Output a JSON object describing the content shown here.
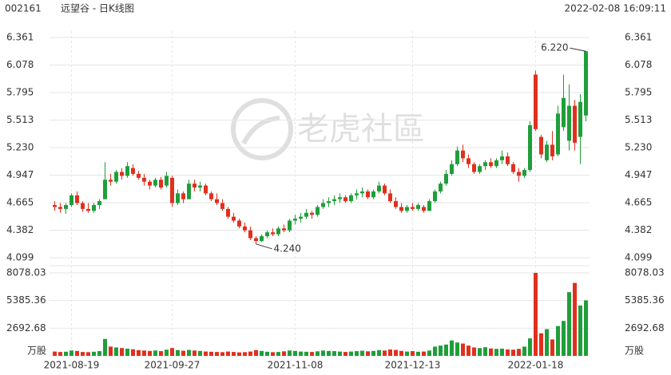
{
  "header": {
    "code": "002161",
    "name": "远望谷 - 日K线图",
    "time": "2022-02-08 16:09:11"
  },
  "watermark": "老虎社區",
  "chart_data": {
    "type": "candlestick",
    "up_color": "#1f9e3a",
    "down_color": "#e0301e",
    "categories": [
      null,
      null,
      null,
      "2021-08-19",
      null,
      null,
      null,
      null,
      null,
      null,
      null,
      null,
      null,
      null,
      null,
      null,
      null,
      null,
      null,
      null,
      null,
      "2021-09-27",
      null,
      null,
      null,
      null,
      null,
      null,
      null,
      null,
      null,
      null,
      null,
      null,
      null,
      null,
      null,
      null,
      null,
      null,
      null,
      null,
      null,
      "2021-11-08",
      null,
      null,
      null,
      null,
      null,
      null,
      null,
      null,
      null,
      null,
      null,
      null,
      null,
      null,
      null,
      null,
      null,
      null,
      null,
      null,
      "2021-12-13",
      null,
      null,
      null,
      null,
      null,
      null,
      null,
      null,
      null,
      null,
      null,
      null,
      null,
      null,
      null,
      null,
      null,
      null,
      null,
      null,
      null,
      "2022-01-18",
      null,
      null,
      null,
      null,
      null,
      null,
      null,
      null,
      null
    ],
    "open": [
      4.64,
      4.62,
      4.6,
      4.64,
      4.74,
      4.66,
      4.6,
      4.58,
      4.64,
      4.7,
      4.9,
      4.88,
      4.98,
      4.94,
      5.02,
      4.96,
      4.92,
      4.88,
      4.84,
      4.9,
      4.84,
      4.92,
      4.66,
      4.76,
      4.7,
      4.86,
      4.82,
      4.84,
      4.76,
      4.7,
      4.66,
      4.6,
      4.52,
      4.48,
      4.42,
      4.38,
      4.3,
      4.27,
      4.32,
      4.36,
      4.34,
      4.4,
      4.38,
      4.48,
      4.5,
      4.52,
      4.56,
      4.54,
      4.62,
      4.66,
      4.68,
      4.7,
      4.72,
      4.68,
      4.74,
      4.76,
      4.78,
      4.72,
      4.78,
      4.84,
      4.76,
      4.68,
      4.62,
      4.58,
      4.62,
      4.6,
      4.62,
      4.58,
      4.68,
      4.78,
      4.86,
      4.96,
      5.06,
      5.2,
      5.12,
      5.06,
      4.98,
      5.04,
      5.08,
      5.04,
      5.1,
      5.14,
      5.06,
      4.98,
      4.94,
      5.0,
      5.98,
      5.34,
      5.1,
      5.26,
      5.16,
      5.44,
      5.3,
      5.66,
      5.34,
      5.56
    ],
    "high": [
      4.68,
      4.66,
      4.66,
      4.76,
      4.78,
      4.68,
      4.66,
      4.66,
      4.7,
      5.08,
      4.96,
      5.0,
      5.02,
      5.08,
      5.06,
      4.99,
      4.96,
      4.9,
      4.92,
      4.93,
      4.98,
      4.94,
      4.8,
      4.78,
      4.9,
      4.9,
      4.88,
      4.86,
      4.78,
      4.76,
      4.7,
      4.62,
      4.56,
      4.5,
      4.46,
      4.42,
      4.32,
      4.34,
      4.38,
      4.4,
      4.42,
      4.44,
      4.5,
      4.54,
      4.56,
      4.6,
      4.58,
      4.64,
      4.7,
      4.72,
      4.74,
      4.76,
      4.74,
      4.76,
      4.8,
      4.82,
      4.8,
      4.8,
      4.88,
      4.86,
      4.8,
      4.72,
      4.66,
      4.64,
      4.66,
      4.66,
      4.64,
      4.7,
      4.8,
      4.88,
      5.0,
      5.1,
      5.24,
      5.26,
      5.16,
      5.08,
      5.06,
      5.1,
      5.12,
      5.12,
      5.2,
      5.18,
      5.08,
      5.02,
      5.02,
      5.5,
      6.02,
      5.36,
      5.3,
      5.4,
      5.66,
      5.98,
      5.88,
      5.72,
      5.78,
      6.22
    ],
    "low": [
      4.58,
      4.56,
      4.55,
      4.62,
      4.64,
      4.57,
      4.56,
      4.56,
      4.6,
      4.7,
      4.84,
      4.86,
      4.9,
      4.92,
      4.94,
      4.9,
      4.84,
      4.8,
      4.82,
      4.8,
      4.82,
      4.62,
      4.64,
      4.66,
      4.7,
      4.78,
      4.78,
      4.74,
      4.68,
      4.64,
      4.58,
      4.5,
      4.46,
      4.4,
      4.36,
      4.28,
      4.24,
      4.26,
      4.3,
      4.32,
      4.32,
      4.36,
      4.36,
      4.44,
      4.46,
      4.5,
      4.5,
      4.52,
      4.6,
      4.62,
      4.64,
      4.66,
      4.66,
      4.66,
      4.7,
      4.72,
      4.7,
      4.7,
      4.76,
      4.74,
      4.66,
      4.6,
      4.56,
      4.56,
      4.58,
      4.58,
      4.56,
      4.58,
      4.66,
      4.76,
      4.84,
      4.94,
      5.04,
      5.08,
      5.02,
      4.96,
      4.96,
      5.0,
      5.02,
      5.02,
      5.06,
      5.04,
      4.96,
      4.88,
      4.92,
      4.98,
      5.4,
      5.12,
      5.08,
      5.1,
      5.14,
      5.4,
      5.2,
      5.2,
      5.06,
      5.5
    ],
    "close": [
      4.62,
      4.6,
      4.64,
      4.74,
      4.66,
      4.6,
      4.58,
      4.64,
      4.68,
      4.9,
      4.88,
      4.98,
      4.94,
      5.04,
      4.96,
      4.92,
      4.88,
      4.84,
      4.9,
      4.82,
      4.94,
      4.66,
      4.76,
      4.7,
      4.86,
      4.82,
      4.84,
      4.76,
      4.7,
      4.66,
      4.6,
      4.52,
      4.48,
      4.42,
      4.38,
      4.3,
      4.27,
      4.32,
      4.36,
      4.34,
      4.4,
      4.38,
      4.48,
      4.5,
      4.52,
      4.56,
      4.54,
      4.62,
      4.66,
      4.68,
      4.7,
      4.72,
      4.68,
      4.74,
      4.76,
      4.78,
      4.72,
      4.78,
      4.84,
      4.76,
      4.68,
      4.62,
      4.58,
      4.62,
      4.6,
      4.64,
      4.58,
      4.68,
      4.78,
      4.86,
      4.96,
      5.06,
      5.2,
      5.12,
      5.06,
      4.98,
      5.04,
      5.08,
      5.04,
      5.1,
      5.14,
      5.06,
      4.98,
      4.94,
      5.0,
      5.46,
      5.42,
      5.16,
      5.26,
      5.14,
      5.58,
      5.74,
      5.66,
      5.28,
      5.7,
      6.22
    ],
    "volume": [
      420,
      380,
      400,
      520,
      480,
      380,
      360,
      400,
      460,
      1650,
      900,
      820,
      760,
      700,
      640,
      560,
      520,
      480,
      520,
      460,
      600,
      760,
      560,
      500,
      580,
      520,
      480,
      420,
      400,
      380,
      360,
      420,
      380,
      340,
      360,
      420,
      560,
      480,
      400,
      360,
      380,
      440,
      520,
      480,
      420,
      400,
      380,
      440,
      520,
      480,
      460,
      420,
      380,
      420,
      460,
      500,
      440,
      480,
      560,
      520,
      620,
      580,
      480,
      420,
      460,
      400,
      420,
      520,
      900,
      1000,
      1100,
      1500,
      1300,
      1200,
      1000,
      820,
      760,
      840,
      720,
      680,
      700,
      620,
      600,
      680,
      900,
      1700,
      8078,
      2200,
      2600,
      1600,
      2900,
      3400,
      6200,
      7100,
      4900,
      5400
    ],
    "ylim": [
      4.099,
      6.361
    ],
    "yticks": [
      4.099,
      4.382,
      4.665,
      4.947,
      5.23,
      5.513,
      5.795,
      6.078,
      6.361
    ],
    "ytick_labels": [
      "4.099",
      "4.382",
      "4.665",
      "4.947",
      "5.230",
      "5.513",
      "5.795",
      "6.078",
      "6.361"
    ],
    "volume_ylim": [
      0,
      8078.03
    ],
    "volume_yticks": [
      2692.68,
      5385.36,
      8078.03
    ],
    "volume_unit": "万股",
    "annotations": [
      {
        "text": "6.220"
      },
      {
        "text": "4.240"
      }
    ],
    "grid": true
  }
}
